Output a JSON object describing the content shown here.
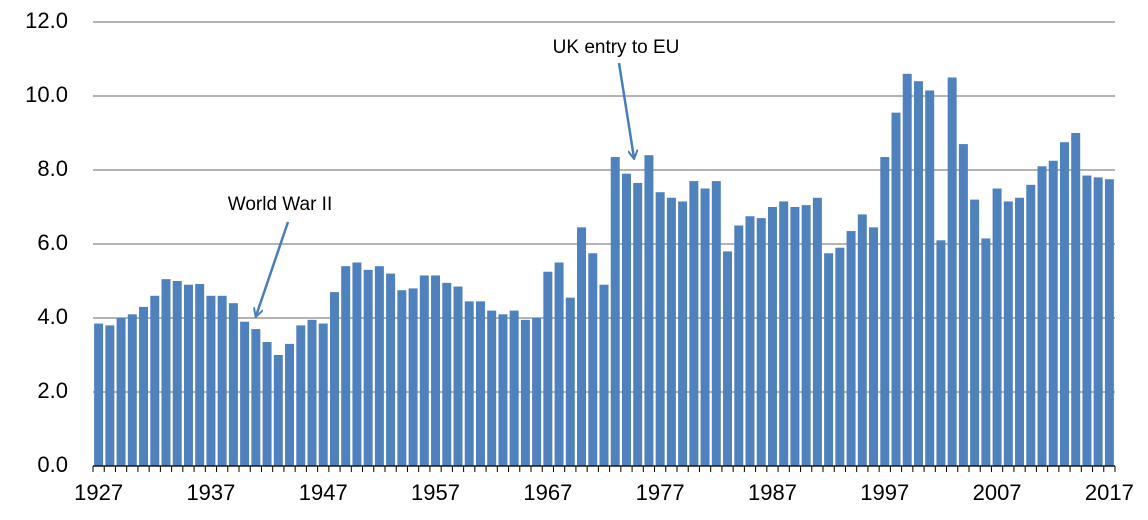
{
  "chart_data": {
    "type": "bar",
    "categories": [
      "1927",
      null,
      null,
      null,
      null,
      null,
      null,
      null,
      null,
      null,
      "1937",
      null,
      null,
      null,
      null,
      null,
      null,
      null,
      null,
      null,
      "1947",
      null,
      null,
      null,
      null,
      null,
      null,
      null,
      null,
      null,
      "1957",
      null,
      null,
      null,
      null,
      null,
      null,
      null,
      null,
      null,
      "1967",
      null,
      null,
      null,
      null,
      null,
      null,
      null,
      null,
      null,
      "1977",
      null,
      null,
      null,
      null,
      null,
      null,
      null,
      null,
      null,
      "1987",
      null,
      null,
      null,
      null,
      null,
      null,
      null,
      null,
      null,
      "1997",
      null,
      null,
      null,
      null,
      null,
      null,
      null,
      null,
      null,
      "2007",
      null,
      null,
      null,
      null,
      null,
      null,
      null,
      null,
      null,
      "2017"
    ],
    "values": [
      3.85,
      3.8,
      4.0,
      4.1,
      4.3,
      4.6,
      5.05,
      5.0,
      4.9,
      4.92,
      4.6,
      4.6,
      4.4,
      3.9,
      3.7,
      3.35,
      3.0,
      3.3,
      3.8,
      3.95,
      3.85,
      4.7,
      5.4,
      5.5,
      5.3,
      5.4,
      5.2,
      4.75,
      4.8,
      5.15,
      5.15,
      4.95,
      4.85,
      4.45,
      4.45,
      4.2,
      4.1,
      4.2,
      3.95,
      4.0,
      5.25,
      5.5,
      4.55,
      6.45,
      5.75,
      4.9,
      8.35,
      7.9,
      7.65,
      8.4,
      7.4,
      7.25,
      7.15,
      7.7,
      7.5,
      7.7,
      5.8,
      6.5,
      6.75,
      6.7,
      7.0,
      7.15,
      7.0,
      7.05,
      7.25,
      5.75,
      5.9,
      6.35,
      6.8,
      6.45,
      8.35,
      9.55,
      10.6,
      10.4,
      10.15,
      6.1,
      10.5,
      8.7,
      7.2,
      6.15,
      7.5,
      7.15,
      7.25,
      7.6,
      8.1,
      8.25,
      8.75,
      9.0,
      7.85,
      7.8,
      7.75
    ],
    "color": "#4f81bd",
    "ylim": [
      0,
      12
    ],
    "yticks": [
      {
        "value": 0,
        "label": "0.0"
      },
      {
        "value": 2,
        "label": "2.0"
      },
      {
        "value": 4,
        "label": "4.0"
      },
      {
        "value": 6,
        "label": "6.0"
      },
      {
        "value": 8,
        "label": "8.0"
      },
      {
        "value": 10,
        "label": "10.0"
      },
      {
        "value": 12,
        "label": "12.0"
      }
    ],
    "grid": true,
    "annotations": [
      {
        "text": "World War II"
      },
      {
        "text": "UK entry to EU"
      }
    ]
  }
}
